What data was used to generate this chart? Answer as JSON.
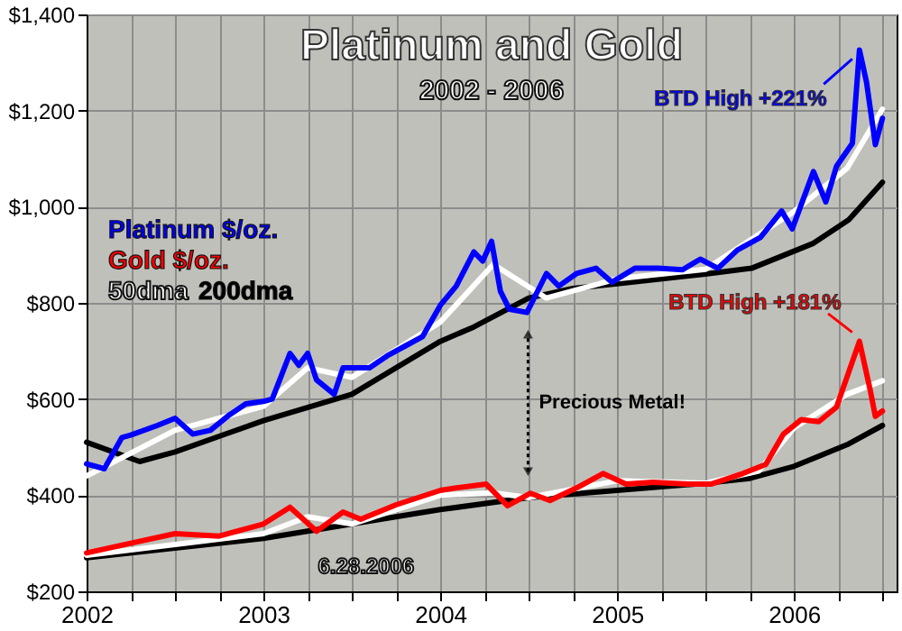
{
  "chart_data": {
    "type": "line",
    "title": "Platinum and Gold",
    "subtitle": "2002 - 2006",
    "xlim": [
      2002,
      2006.58
    ],
    "xticks": [
      {
        "value": 2002,
        "label": "2002"
      },
      {
        "value": 2002.25,
        "label": null
      },
      {
        "value": 2002.5,
        "label": null
      },
      {
        "value": 2002.75,
        "label": null
      },
      {
        "value": 2003,
        "label": "2003"
      },
      {
        "value": 2003.25,
        "label": null
      },
      {
        "value": 2003.5,
        "label": null
      },
      {
        "value": 2003.75,
        "label": null
      },
      {
        "value": 2004,
        "label": "2004"
      },
      {
        "value": 2004.25,
        "label": null
      },
      {
        "value": 2004.5,
        "label": null
      },
      {
        "value": 2004.75,
        "label": null
      },
      {
        "value": 2005,
        "label": "2005"
      },
      {
        "value": 2005.25,
        "label": null
      },
      {
        "value": 2005.5,
        "label": null
      },
      {
        "value": 2005.75,
        "label": null
      },
      {
        "value": 2006,
        "label": "2006"
      },
      {
        "value": 2006.25,
        "label": null
      },
      {
        "value": 2006.5,
        "label": null
      }
    ],
    "ylim": [
      200,
      1400
    ],
    "yticks": [
      {
        "value": 200,
        "label": "$200"
      },
      {
        "value": 400,
        "label": "$400"
      },
      {
        "value": 600,
        "label": "$600"
      },
      {
        "value": 800,
        "label": "$800"
      },
      {
        "value": 1000,
        "label": "$1,000"
      },
      {
        "value": 1200,
        "label": "$1,200"
      },
      {
        "value": 1400,
        "label": "$1,400"
      }
    ],
    "grid": true,
    "legend": "top left",
    "line_style": "solid",
    "marker": "none",
    "series": [
      {
        "name": "Platinum $/oz.",
        "color": "#0000ff",
        "x": [
          2002,
          2002.1,
          2002.2,
          2002.25,
          2002.4,
          2002.5,
          2002.6,
          2002.7,
          2002.8,
          2002.9,
          2003,
          2003.05,
          2003.15,
          2003.2,
          2003.25,
          2003.3,
          2003.4,
          2003.45,
          2003.6,
          2003.7,
          2003.8,
          2003.9,
          2004,
          2004.09,
          2004.19,
          2004.24,
          2004.29,
          2004.34,
          2004.39,
          2004.49,
          2004.6,
          2004.67,
          2004.77,
          2004.88,
          2004.97,
          2005.1,
          2005.23,
          2005.37,
          2005.47,
          2005.57,
          2005.68,
          2005.81,
          2005.93,
          2005.99,
          2006.11,
          2006.18,
          2006.24,
          2006.33,
          2006.37,
          2006.41,
          2006.46,
          2006.5
        ],
        "values": [
          465,
          455,
          520,
          525,
          545,
          560,
          527,
          535,
          565,
          590,
          595,
          600,
          695,
          670,
          695,
          640,
          610,
          665,
          665,
          690,
          710,
          730,
          795,
          835,
          906,
          887,
          928,
          824,
          787,
          780,
          861,
          835,
          861,
          872,
          843,
          872,
          872,
          869,
          891,
          872,
          910,
          936,
          991,
          954,
          1073,
          1010,
          1084,
          1132,
          1326,
          1259,
          1129,
          1184
        ]
      },
      {
        "name": "Gold $/oz.",
        "color": "#ff0000",
        "x": [
          2002,
          2002.25,
          2002.5,
          2002.75,
          2003,
          2003.15,
          2003.3,
          2003.45,
          2003.55,
          2003.75,
          2004,
          2004.09,
          2004.26,
          2004.38,
          2004.51,
          2004.62,
          2004.77,
          2004.92,
          2005.05,
          2005.2,
          2005.4,
          2005.53,
          2005.71,
          2005.84,
          2005.94,
          2006.04,
          2006.14,
          2006.24,
          2006.37,
          2006.43,
          2006.46,
          2006.5
        ],
        "values": [
          280,
          300,
          320,
          315,
          340,
          375,
          325,
          365,
          350,
          380,
          410,
          415,
          423,
          378,
          404,
          389,
          415,
          445,
          423,
          427,
          423,
          423,
          445,
          464,
          527,
          557,
          553,
          583,
          720,
          620,
          564,
          575
        ]
      },
      {
        "name": "50dma",
        "color": "#ffffff",
        "x": [
          2002,
          2002.5,
          2003,
          2003.25,
          2003.5,
          2004,
          2004.3,
          2004.6,
          2005,
          2005.5,
          2006,
          2006.3,
          2006.5
        ],
        "values": [
          440,
          535,
          585,
          665,
          645,
          760,
          880,
          810,
          850,
          870,
          990,
          1080,
          1203
        ]
      },
      {
        "name": "200dma",
        "color": "#000000",
        "x": [
          2002,
          2002.3,
          2002.5,
          2003,
          2003.5,
          2004,
          2004.19,
          2004.5,
          2004.75,
          2005,
          2005.5,
          2005.76,
          2006.11,
          2006.31,
          2006.5
        ],
        "values": [
          510,
          470,
          490,
          555,
          610,
          720,
          750,
          810,
          830,
          840,
          860,
          872,
          924,
          973,
          1051
        ]
      },
      {
        "color": "#ffffff",
        "x": [
          2002,
          2003,
          2003.25,
          2003.5,
          2004,
          2004.3,
          2004.5,
          2005,
          2005.5,
          2005.8,
          2006,
          2006.3,
          2006.5
        ],
        "values": [
          275,
          320,
          355,
          340,
          400,
          405,
          395,
          430,
          425,
          450,
          540,
          610,
          638
        ]
      },
      {
        "color": "#000000",
        "x": [
          2002,
          2003,
          2004,
          2004.5,
          2005,
          2005.5,
          2005.75,
          2006,
          2006.3,
          2006.5
        ],
        "values": [
          270,
          310,
          370,
          395,
          410,
          425,
          435,
          460,
          505,
          545
        ]
      }
    ],
    "annotations": [
      {
        "text": "BTD High +221%",
        "x": 2006.37,
        "y": 1326
      },
      {
        "text": "BTD High +181%",
        "x": 2006.37,
        "y": 720
      },
      "Precious Metal!",
      "6.28.2006"
    ]
  }
}
